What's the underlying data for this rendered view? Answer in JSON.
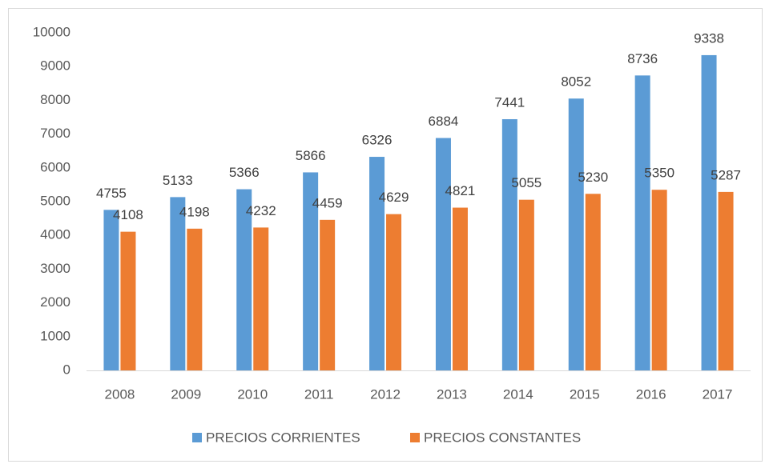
{
  "chart_data": {
    "type": "bar",
    "categories": [
      "2008",
      "2009",
      "2010",
      "2011",
      "2012",
      "2013",
      "2014",
      "2015",
      "2016",
      "2017"
    ],
    "series": [
      {
        "name": "PRECIOS CORRIENTES",
        "color": "#5b9bd5",
        "values": [
          4755,
          5133,
          5366,
          5866,
          6326,
          6884,
          7441,
          8052,
          8736,
          9338
        ]
      },
      {
        "name": "PRECIOS CONSTANTES",
        "color": "#ed7d31",
        "values": [
          4108,
          4198,
          4232,
          4459,
          4629,
          4821,
          5055,
          5230,
          5350,
          5287
        ]
      }
    ],
    "ylim": [
      0,
      10000
    ],
    "yticks": [
      0,
      1000,
      2000,
      3000,
      4000,
      5000,
      6000,
      7000,
      8000,
      9000,
      10000
    ],
    "grid": false,
    "legend": "bottom"
  }
}
